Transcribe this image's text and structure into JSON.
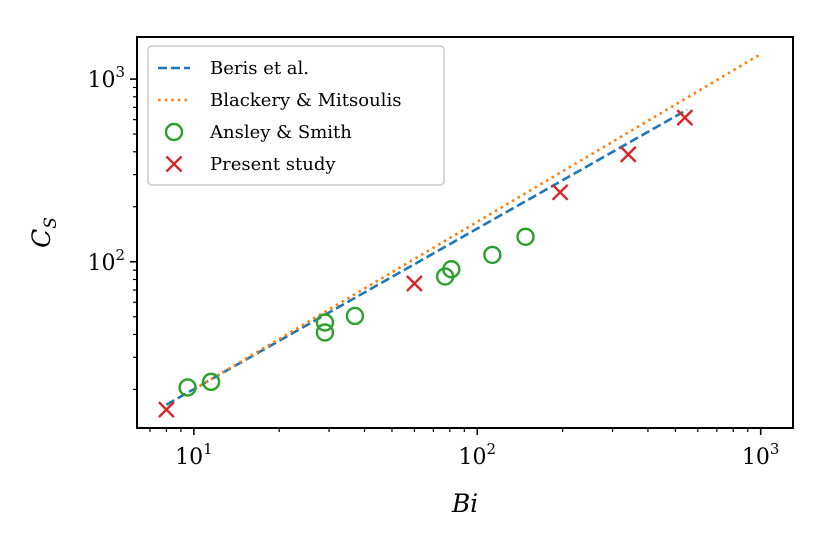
{
  "chart_data": {
    "type": "scatter",
    "xscale": "log",
    "yscale": "log",
    "xlabel": "Bi",
    "ylabel": "C",
    "ylabel_sub": "S",
    "xlim": [
      6.3,
      1300
    ],
    "ylim": [
      12.3,
      1700
    ],
    "x_ticks": [
      {
        "value": 10,
        "base": "10",
        "exp": "1"
      },
      {
        "value": 100,
        "base": "10",
        "exp": "2"
      },
      {
        "value": 1000,
        "base": "10",
        "exp": "3"
      }
    ],
    "y_ticks": [
      {
        "value": 100,
        "base": "10",
        "exp": "2"
      },
      {
        "value": 1000,
        "base": "10",
        "exp": "3"
      }
    ],
    "legend_position": "upper-left",
    "series": [
      {
        "name": "Beris et al.",
        "kind": "line",
        "style": "dashed",
        "color": "#1f77b4",
        "x": [
          8,
          550
        ],
        "y": [
          16.5,
          680
        ]
      },
      {
        "name": "Blackery & Mitsoulis",
        "kind": "line",
        "style": "dotted",
        "color": "#ff7f0e",
        "x": [
          10,
          1000
        ],
        "y": [
          20,
          1370
        ]
      },
      {
        "name": "Ansley & Smith",
        "kind": "marker",
        "marker": "open-circle",
        "color": "#2ca02c",
        "x": [
          9.5,
          11.5,
          29,
          29,
          37,
          77,
          81,
          113,
          148
        ],
        "y": [
          20.5,
          22,
          41,
          46.5,
          50.5,
          83,
          91,
          109,
          137
        ]
      },
      {
        "name": "Present study",
        "kind": "marker",
        "marker": "x",
        "color": "#d62728",
        "x": [
          8,
          60,
          196,
          341,
          540
        ],
        "y": [
          15.5,
          76,
          240,
          387,
          615
        ]
      }
    ]
  }
}
